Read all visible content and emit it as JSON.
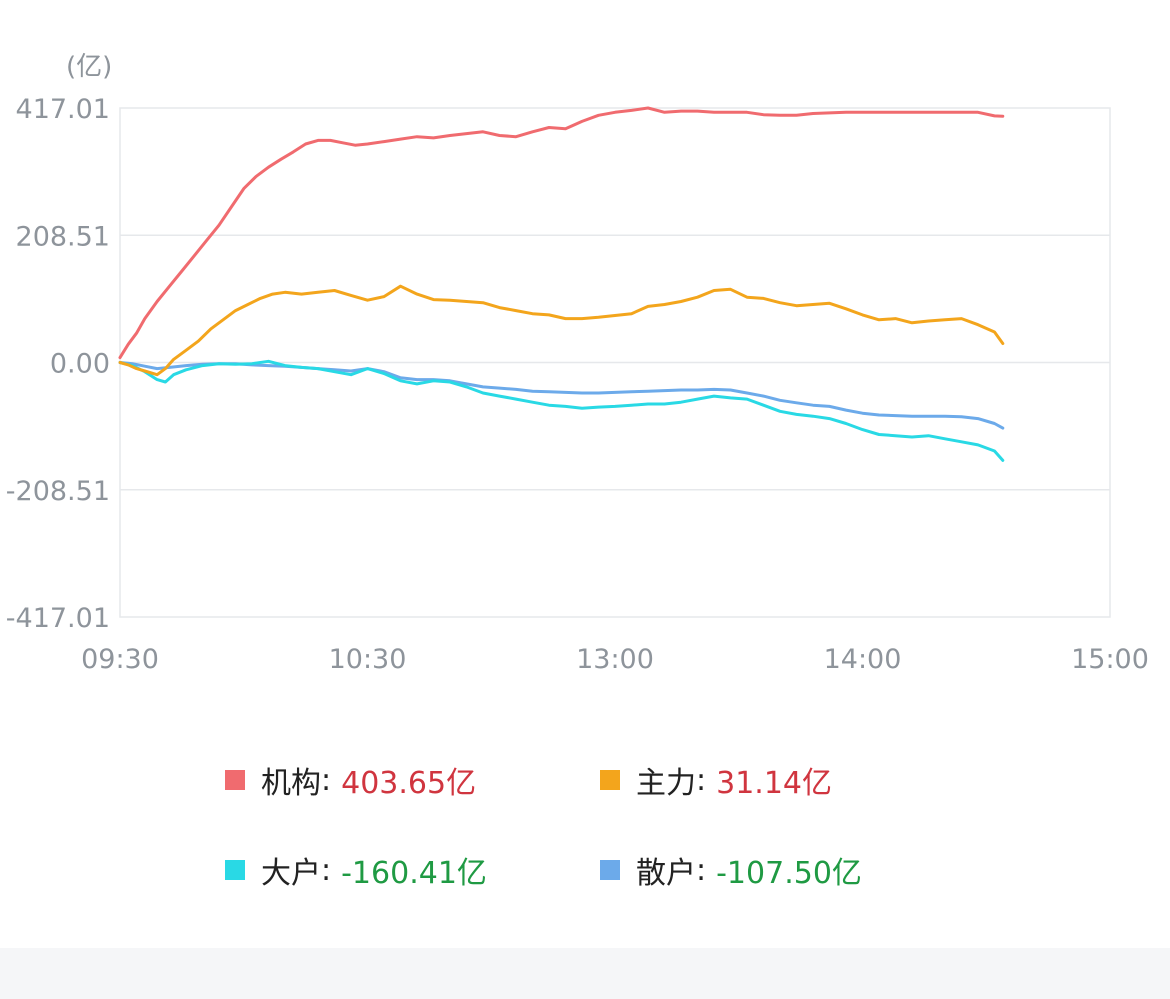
{
  "chart_data": {
    "type": "line",
    "unit_label": "(亿)",
    "y_ticks": [
      "417.01",
      "208.51",
      "0.00",
      "-208.51",
      "-417.01"
    ],
    "ylim": [
      -417.01,
      417.01
    ],
    "x_ticks": [
      "09:30",
      "10:30",
      "13:00",
      "14:00",
      "15:00"
    ],
    "x_range_minutes": [
      0,
      240
    ],
    "grid": true,
    "series": [
      {
        "name": "机构",
        "color": "#f06b6f",
        "x": [
          0,
          2,
          4,
          6,
          9,
          12,
          15,
          18,
          21,
          24,
          27,
          30,
          33,
          36,
          39,
          42,
          45,
          48,
          51,
          54,
          57,
          60,
          64,
          68,
          72,
          76,
          80,
          84,
          88,
          92,
          96,
          100,
          104,
          108,
          112,
          116,
          120,
          124,
          128,
          132,
          136,
          140,
          144,
          148,
          152,
          156,
          160,
          164,
          168,
          172,
          176,
          180,
          184,
          188,
          192,
          196,
          200,
          204,
          208,
          212,
          214
        ],
        "values": [
          8,
          30,
          48,
          72,
          100,
          125,
          150,
          175,
          200,
          225,
          255,
          285,
          305,
          320,
          333,
          345,
          358,
          364,
          364,
          360,
          356,
          358,
          362,
          366,
          370,
          368,
          372,
          375,
          378,
          372,
          370,
          378,
          385,
          383,
          395,
          405,
          410,
          413,
          417,
          410,
          412,
          412,
          410,
          410,
          410,
          406,
          405,
          405,
          408,
          409,
          410,
          410,
          410,
          410,
          410,
          410,
          410,
          410,
          410,
          404,
          403.65
        ]
      },
      {
        "name": "主力",
        "color": "#f3a51c",
        "x": [
          0,
          2,
          4,
          6,
          9,
          11,
          13,
          16,
          19,
          22,
          25,
          28,
          31,
          34,
          37,
          40,
          44,
          48,
          52,
          56,
          60,
          64,
          68,
          72,
          76,
          80,
          84,
          88,
          92,
          96,
          100,
          104,
          108,
          112,
          116,
          120,
          124,
          128,
          132,
          136,
          140,
          144,
          148,
          152,
          156,
          160,
          164,
          168,
          172,
          176,
          180,
          184,
          188,
          192,
          196,
          200,
          204,
          208,
          212,
          214
        ],
        "values": [
          0,
          -4,
          -10,
          -14,
          -20,
          -10,
          5,
          20,
          35,
          55,
          70,
          85,
          95,
          105,
          112,
          115,
          112,
          115,
          118,
          110,
          102,
          108,
          125,
          112,
          103,
          102,
          100,
          98,
          90,
          85,
          80,
          78,
          72,
          72,
          74,
          77,
          80,
          92,
          95,
          100,
          107,
          118,
          120,
          107,
          105,
          98,
          93,
          95,
          97,
          88,
          78,
          70,
          72,
          65,
          68,
          70,
          72,
          62,
          50,
          31.14
        ]
      },
      {
        "name": "大户",
        "color": "#29d9e5",
        "x": [
          0,
          3,
          6,
          9,
          11,
          13,
          16,
          20,
          24,
          28,
          32,
          36,
          40,
          44,
          48,
          52,
          56,
          60,
          64,
          68,
          72,
          76,
          80,
          84,
          88,
          92,
          96,
          100,
          104,
          108,
          112,
          116,
          120,
          124,
          128,
          132,
          136,
          140,
          144,
          148,
          152,
          156,
          160,
          164,
          168,
          172,
          176,
          180,
          184,
          188,
          192,
          196,
          200,
          204,
          208,
          212,
          214
        ],
        "values": [
          0,
          -5,
          -15,
          -28,
          -32,
          -20,
          -12,
          -5,
          -2,
          -3,
          -2,
          2,
          -5,
          -8,
          -10,
          -15,
          -20,
          -10,
          -18,
          -30,
          -35,
          -30,
          -32,
          -40,
          -50,
          -55,
          -60,
          -65,
          -70,
          -72,
          -75,
          -73,
          -72,
          -70,
          -68,
          -68,
          -65,
          -60,
          -55,
          -58,
          -60,
          -70,
          -80,
          -85,
          -88,
          -92,
          -100,
          -110,
          -118,
          -120,
          -122,
          -120,
          -125,
          -130,
          -135,
          -145,
          -160.41
        ]
      },
      {
        "name": "散户",
        "color": "#6caaea",
        "x": [
          0,
          3,
          6,
          9,
          12,
          16,
          20,
          24,
          28,
          32,
          36,
          40,
          44,
          48,
          52,
          56,
          60,
          64,
          68,
          72,
          76,
          80,
          84,
          88,
          92,
          96,
          100,
          104,
          108,
          112,
          116,
          120,
          124,
          128,
          132,
          136,
          140,
          144,
          148,
          152,
          156,
          160,
          164,
          168,
          172,
          176,
          180,
          184,
          188,
          192,
          196,
          200,
          204,
          208,
          212,
          214
        ],
        "values": [
          0,
          -2,
          -6,
          -10,
          -8,
          -5,
          -3,
          -2,
          -2,
          -4,
          -5,
          -6,
          -8,
          -10,
          -12,
          -14,
          -10,
          -15,
          -25,
          -28,
          -28,
          -30,
          -35,
          -40,
          -42,
          -44,
          -47,
          -48,
          -49,
          -50,
          -50,
          -49,
          -48,
          -47,
          -46,
          -45,
          -45,
          -44,
          -45,
          -50,
          -55,
          -62,
          -66,
          -70,
          -72,
          -78,
          -83,
          -86,
          -87,
          -88,
          -88,
          -88,
          -89,
          -92,
          -100,
          -107.5
        ]
      }
    ]
  },
  "legend": [
    {
      "name": "机构",
      "sep": ":",
      "value": "403.65亿",
      "color": "#f06b6f",
      "sign": "pos"
    },
    {
      "name": "主力",
      "sep": ":",
      "value": "31.14亿",
      "color": "#f3a51c",
      "sign": "pos"
    },
    {
      "name": "大户",
      "sep": ":",
      "value": "-160.41亿",
      "color": "#29d9e5",
      "sign": "neg"
    },
    {
      "name": "散户",
      "sep": ":",
      "value": "-107.50亿",
      "color": "#6caaea",
      "sign": "neg"
    }
  ]
}
